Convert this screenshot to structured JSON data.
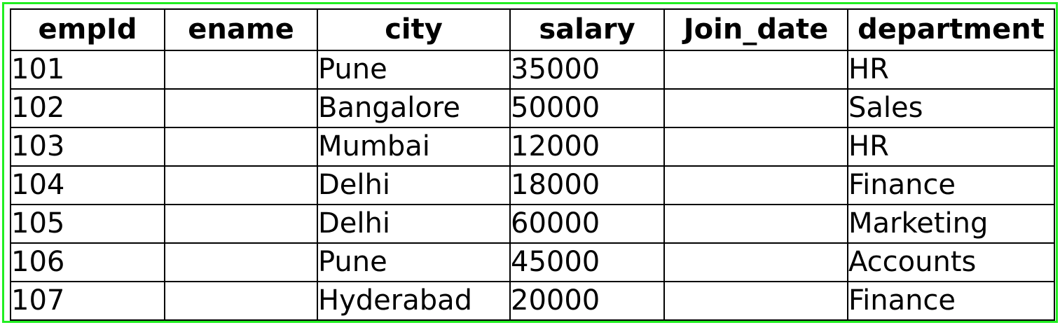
{
  "table": {
    "columns": [
      "empId",
      "ename",
      "city",
      "salary",
      "Join_date",
      "department"
    ],
    "rows": [
      [
        "101",
        "",
        "Pune",
        "35000",
        "",
        "HR"
      ],
      [
        "102",
        "",
        "Bangalore",
        "50000",
        "",
        "Sales"
      ],
      [
        "103",
        "",
        "Mumbai",
        "12000",
        "",
        "HR"
      ],
      [
        "104",
        "",
        "Delhi",
        "18000",
        "",
        "Finance"
      ],
      [
        "105",
        "",
        "Delhi",
        "60000",
        "",
        "Marketing"
      ],
      [
        "106",
        "",
        "Pune",
        "45000",
        "",
        "Accounts"
      ],
      [
        "107",
        "",
        "Hyderabad",
        "20000",
        "",
        "Finance"
      ]
    ]
  },
  "colors": {
    "frame_border": "#22ee22",
    "grid_lines": "#000000",
    "background": "#ffffff"
  }
}
